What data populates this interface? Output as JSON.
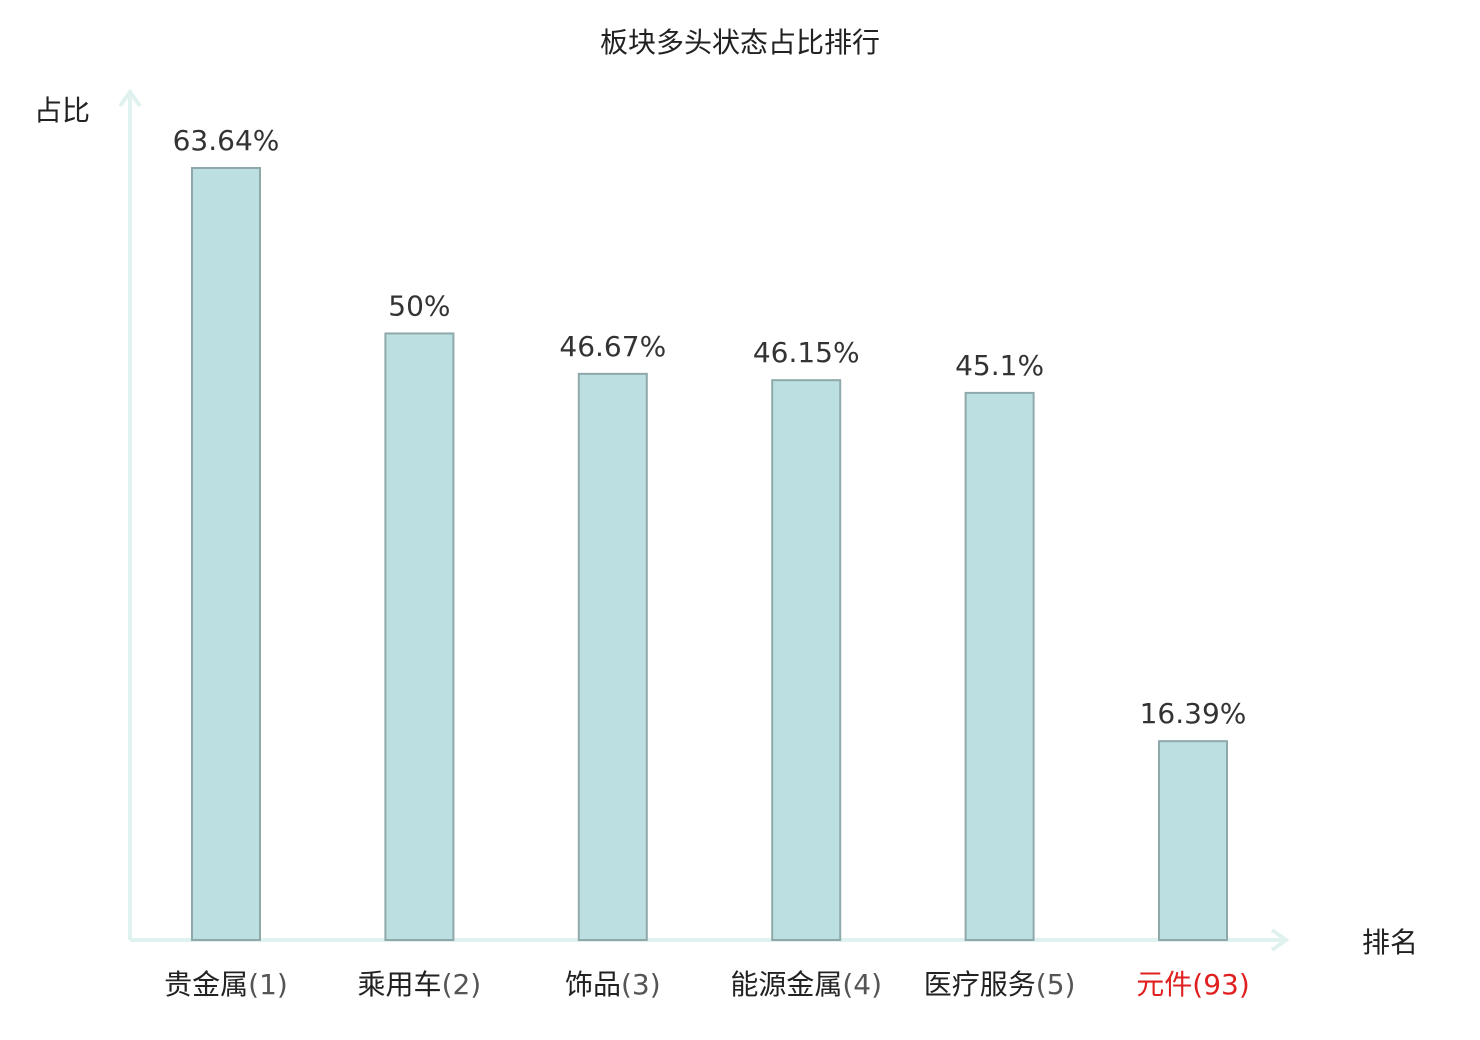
{
  "chart_data": {
    "type": "bar",
    "title": "板块多头状态占比排行",
    "ylabel": "占比",
    "xlabel": "排名",
    "categories": [
      {
        "name": "贵金属",
        "rank": "(1)",
        "highlight": false
      },
      {
        "name": "乘用车",
        "rank": "(2)",
        "highlight": false
      },
      {
        "name": "饰品",
        "rank": "(3)",
        "highlight": false
      },
      {
        "name": "能源金属",
        "rank": "(4)",
        "highlight": false
      },
      {
        "name": "医疗服务",
        "rank": "(5)",
        "highlight": false
      },
      {
        "name": "元件",
        "rank": "(93)",
        "highlight": true
      }
    ],
    "values": [
      63.64,
      50,
      46.67,
      46.15,
      45.1,
      16.39
    ],
    "value_labels": [
      "63.64%",
      "50%",
      "46.67%",
      "46.15%",
      "45.1%",
      "16.39%"
    ],
    "ylim": [
      0,
      70
    ],
    "grid": false,
    "colors": {
      "bar_fill": "#bce0e2",
      "bar_stroke": "#8fa9ab",
      "axis": "#dff2ef",
      "text": "#222222",
      "rank_text": "#555555",
      "highlight": "#e02020"
    }
  }
}
